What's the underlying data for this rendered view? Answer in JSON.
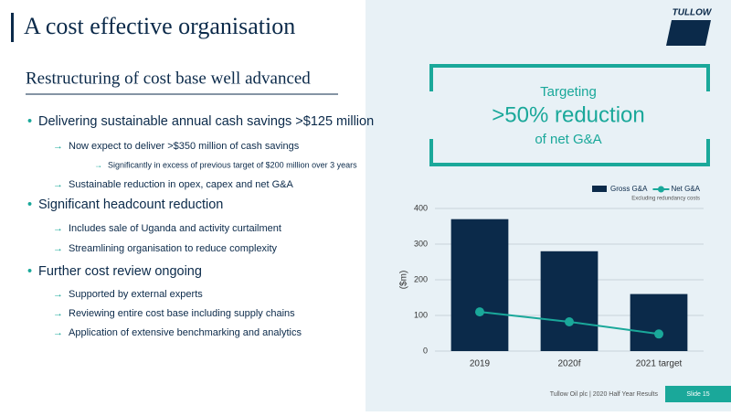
{
  "title": "A cost effective organisation",
  "subtitle": "Restructuring of cost base well advanced",
  "logo": "TULLOW",
  "bullets": [
    {
      "level": 0,
      "text": "Delivering sustainable annual cash savings >$125 million"
    },
    {
      "level": 1,
      "text": "Now expect to deliver >$350 million of cash savings"
    },
    {
      "level": 2,
      "text": "Significantly in excess of previous target of $200 million over 3 years"
    },
    {
      "level": 1,
      "text": "Sustainable reduction in opex, capex and net G&A"
    },
    {
      "level": 0,
      "text": "Significant headcount reduction"
    },
    {
      "level": 1,
      "text": "Includes sale of Uganda and activity curtailment"
    },
    {
      "level": 1,
      "text": "Streamlining organisation to reduce complexity"
    },
    {
      "level": 0,
      "text": "Further cost review ongoing"
    },
    {
      "level": 1,
      "text": "Supported by external experts"
    },
    {
      "level": 1,
      "text": "Reviewing entire cost base including supply chains"
    },
    {
      "level": 1,
      "text": "Application of extensive benchmarking and analytics"
    }
  ],
  "callout": {
    "line1": "Targeting",
    "line2": ">50% reduction",
    "line3": "of net G&A"
  },
  "footer": {
    "text": "Tullow Oil plc | 2020 Half Year Results",
    "slide": "Slide 15"
  },
  "chart_data": {
    "type": "bar",
    "categories": [
      "2019",
      "2020f",
      "2021 target"
    ],
    "series": [
      {
        "name": "Gross G&A",
        "color": "#0b2a4a",
        "type": "bar",
        "values": [
          370,
          280,
          160
        ]
      },
      {
        "name": "Net G&A",
        "color": "#1aa89a",
        "type": "line",
        "values": [
          110,
          82,
          48
        ]
      }
    ],
    "note": "Excluding redundancy costs",
    "ylabel": "($m)",
    "ylim": [
      0,
      400
    ],
    "yticks": [
      0,
      100,
      200,
      300,
      400
    ],
    "grid": true
  }
}
